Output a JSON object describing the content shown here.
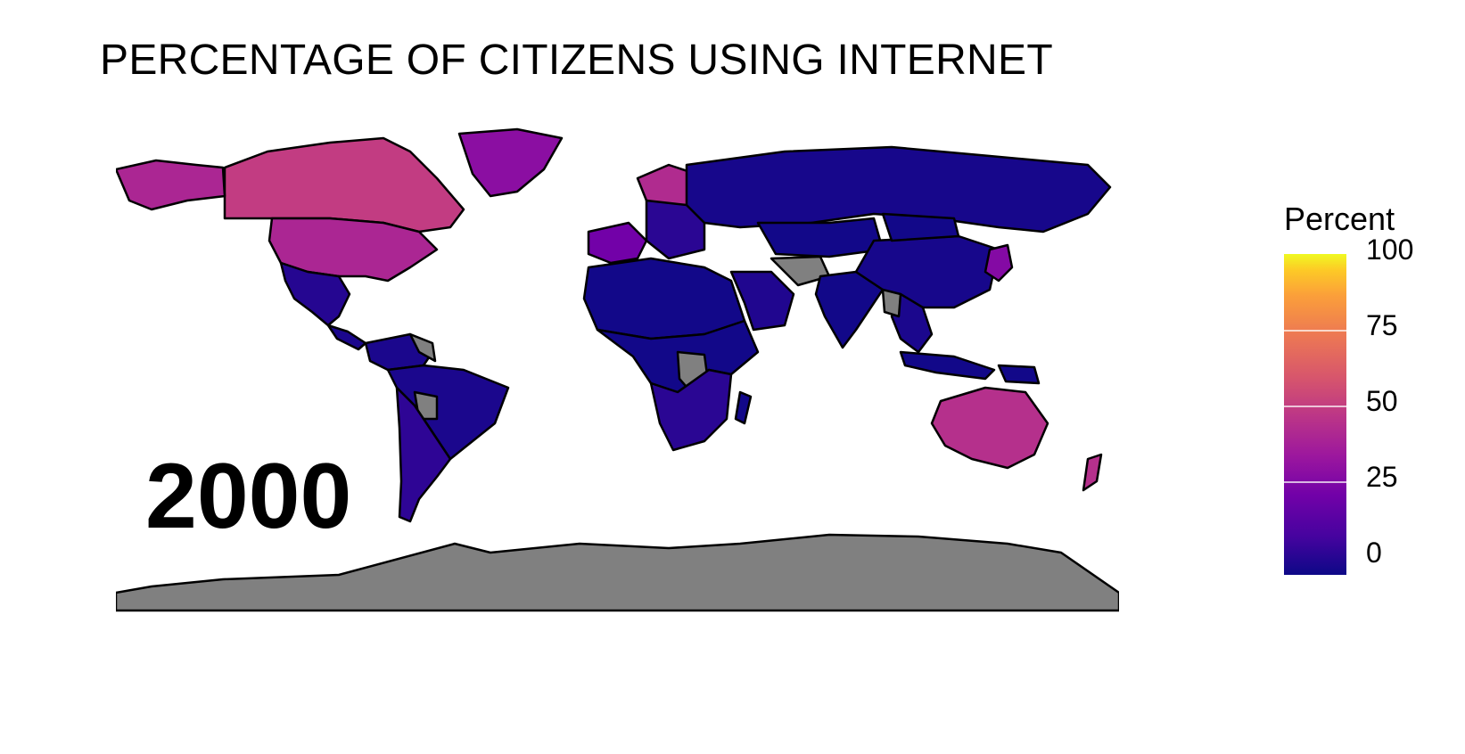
{
  "title": "PERCENTAGE OF CITIZENS USING INTERNET",
  "year_label": "2000",
  "legend": {
    "title": "Percent",
    "ticks": [
      "100",
      "75",
      "50",
      "25",
      "0"
    ],
    "scale_min": 0,
    "scale_max": 100,
    "palette": [
      "#0d0887",
      "#7201a8",
      "#bd3786",
      "#ed7953",
      "#fdca26",
      "#f0f921"
    ],
    "no_data_color": "#808080"
  },
  "regions": [
    {
      "name": "Canada",
      "value": 52
    },
    {
      "name": "USA",
      "value": 43
    },
    {
      "name": "Alaska",
      "value": 43
    },
    {
      "name": "Greenland",
      "value": 32
    },
    {
      "name": "Mexico",
      "value": 5
    },
    {
      "name": "Central America",
      "value": 3
    },
    {
      "name": "South America North",
      "value": 3
    },
    {
      "name": "Brazil",
      "value": 3
    },
    {
      "name": "Bolivia",
      "no_data": true
    },
    {
      "name": "Venezuela",
      "no_data": true
    },
    {
      "name": "Argentina",
      "value": 7
    },
    {
      "name": "Western Europe",
      "value": 25
    },
    {
      "name": "Scandinavia",
      "value": 45
    },
    {
      "name": "Eastern Europe",
      "value": 6
    },
    {
      "name": "Russia",
      "value": 2
    },
    {
      "name": "North Africa",
      "value": 1
    },
    {
      "name": "Sub-Saharan Africa",
      "value": 1
    },
    {
      "name": "Central Africa",
      "no_data": true
    },
    {
      "name": "South Africa",
      "value": 6
    },
    {
      "name": "Madagascar",
      "value": 1
    },
    {
      "name": "Middle East",
      "value": 4
    },
    {
      "name": "Iran-Afghanistan",
      "no_data": true
    },
    {
      "name": "Central Asia",
      "value": 1
    },
    {
      "name": "India",
      "value": 1
    },
    {
      "name": "China",
      "value": 2
    },
    {
      "name": "Mongolia",
      "value": 1
    },
    {
      "name": "Japan",
      "value": 30
    },
    {
      "name": "Southeast Asia",
      "value": 3
    },
    {
      "name": "Myanmar",
      "no_data": true
    },
    {
      "name": "Indonesia",
      "value": 1
    },
    {
      "name": "Papua New Guinea",
      "value": 1
    },
    {
      "name": "Australia",
      "value": 47
    },
    {
      "name": "New Zealand",
      "value": 47
    },
    {
      "name": "Antarctica",
      "no_data": true
    }
  ]
}
